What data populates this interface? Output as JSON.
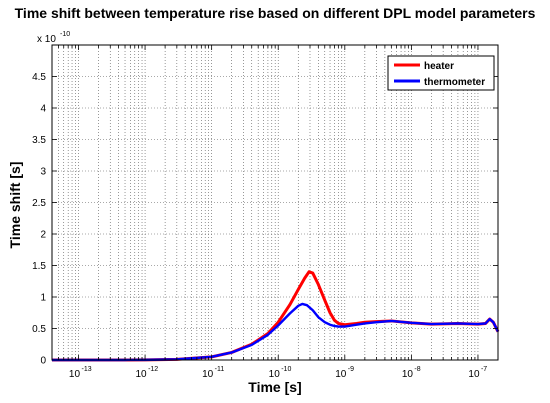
{
  "chart_data": {
    "type": "line",
    "title": "Time shift between temperature rise based on different DPL model parameters",
    "xlabel": "Time [s]",
    "ylabel": "Time shift [s]",
    "x_scale": "log",
    "xlim": [
      4e-14,
      2e-07
    ],
    "ylim": [
      0,
      5e-10
    ],
    "y_multiplier_label": "x 10",
    "y_multiplier_exponent": "-10",
    "x_tick_labels": [
      {
        "value": 1e-13,
        "base": "10",
        "exp": "-13"
      },
      {
        "value": 1e-12,
        "base": "10",
        "exp": "-12"
      },
      {
        "value": 1e-11,
        "base": "10",
        "exp": "-11"
      },
      {
        "value": 1e-10,
        "base": "10",
        "exp": "-10"
      },
      {
        "value": 1e-09,
        "base": "10",
        "exp": "-9"
      },
      {
        "value": 1e-08,
        "base": "10",
        "exp": "-8"
      },
      {
        "value": 1e-07,
        "base": "10",
        "exp": "-7"
      }
    ],
    "y_tick_labels": [
      "0",
      "0.5",
      "1",
      "1.5",
      "2",
      "2.5",
      "3",
      "3.5",
      "4",
      "4.5"
    ],
    "grid": true,
    "legend_position": "top-right",
    "colors": {
      "heater": "#ff0000",
      "thermometer": "#0000ff"
    },
    "series": [
      {
        "name": "heater",
        "x": [
          4e-14,
          5e-13,
          1e-12,
          3e-12,
          1e-11,
          2e-11,
          4e-11,
          7e-11,
          1e-10,
          1.5e-10,
          2e-10,
          2.5e-10,
          2.9e-10,
          3.3e-10,
          4e-10,
          5e-10,
          6e-10,
          7e-10,
          8e-10,
          1e-09,
          1.5e-09,
          2e-09,
          3e-09,
          5e-09,
          1e-08,
          2e-08,
          5e-08,
          1e-07,
          1.3e-07,
          1.5e-07,
          1.7e-07,
          2e-07
        ],
        "y": [
          0,
          0,
          2e-13,
          1e-12,
          5e-12,
          1.2e-11,
          2.5e-11,
          4.2e-11,
          6e-11,
          8.8e-11,
          1.12e-10,
          1.3e-10,
          1.4e-10,
          1.38e-10,
          1.2e-10,
          9.5e-11,
          7.5e-11,
          6.3e-11,
          5.8e-11,
          5.6e-11,
          5.8e-11,
          6e-11,
          6.1e-11,
          6.2e-11,
          5.9e-11,
          5.7e-11,
          5.8e-11,
          5.7e-11,
          5.8e-11,
          6.5e-11,
          6e-11,
          4.5e-11
        ]
      },
      {
        "name": "thermometer",
        "x": [
          4e-14,
          5e-13,
          1e-12,
          3e-12,
          1e-11,
          2e-11,
          4e-11,
          7e-11,
          1e-10,
          1.5e-10,
          2e-10,
          2.3e-10,
          2.7e-10,
          3.3e-10,
          4e-10,
          5e-10,
          6e-10,
          7e-10,
          8e-10,
          1e-09,
          1.5e-09,
          2e-09,
          3e-09,
          5e-09,
          1e-08,
          2e-08,
          5e-08,
          1e-07,
          1.3e-07,
          1.5e-07,
          1.7e-07,
          2e-07
        ],
        "y": [
          0,
          0,
          2e-13,
          1e-12,
          5e-12,
          1.2e-11,
          2.4e-11,
          4e-11,
          5.5e-11,
          7.4e-11,
          8.6e-11,
          8.9e-11,
          8.7e-11,
          7.9e-11,
          6.8e-11,
          6e-11,
          5.6e-11,
          5.4e-11,
          5.3e-11,
          5.3e-11,
          5.6e-11,
          5.8e-11,
          6e-11,
          6.2e-11,
          5.9e-11,
          5.7e-11,
          5.8e-11,
          5.7e-11,
          5.8e-11,
          6.5e-11,
          6e-11,
          4.5e-11
        ]
      }
    ]
  }
}
